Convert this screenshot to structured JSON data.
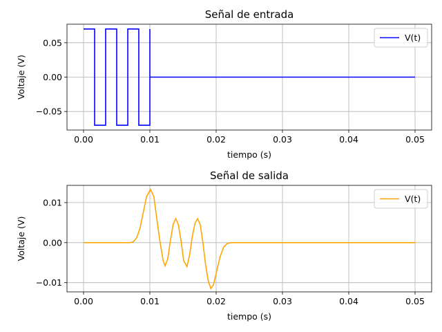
{
  "chart_data": [
    {
      "type": "line",
      "title": "Señal de entrada",
      "xlabel": "tiempo (s)",
      "ylabel": "Voltaje (V)",
      "xlim": [
        -0.0025,
        0.0525
      ],
      "ylim": [
        -0.077,
        0.077
      ],
      "xticks": [
        0.0,
        0.01,
        0.02,
        0.03,
        0.04,
        0.05
      ],
      "xtick_labels": [
        "0.00",
        "0.01",
        "0.02",
        "0.03",
        "0.04",
        "0.05"
      ],
      "yticks": [
        0.05,
        0.0,
        -0.05
      ],
      "ytick_labels": [
        "0.05",
        "0.00",
        "−0.05"
      ],
      "grid": true,
      "legend_position": "top-right",
      "series": [
        {
          "name": "V(t)",
          "color": "#0000ff",
          "step": true,
          "x": [
            0.0,
            0.00167,
            0.00333,
            0.005,
            0.00667,
            0.00833,
            0.01,
            0.01,
            0.05
          ],
          "y": [
            0.07,
            -0.07,
            0.07,
            -0.07,
            0.07,
            -0.07,
            0.07,
            0.0,
            0.0
          ]
        }
      ]
    },
    {
      "type": "line",
      "title": "Señal de salida",
      "xlabel": "tiempo (s)",
      "ylabel": "Voltaje (V)",
      "xlim": [
        -0.0025,
        0.0525
      ],
      "ylim": [
        -0.0123,
        0.0143
      ],
      "xticks": [
        0.0,
        0.01,
        0.02,
        0.03,
        0.04,
        0.05
      ],
      "xtick_labels": [
        "0.00",
        "0.01",
        "0.02",
        "0.03",
        "0.04",
        "0.05"
      ],
      "yticks": [
        0.01,
        0.0,
        -0.01
      ],
      "ytick_labels": [
        "0.01",
        "0.00",
        "−0.01"
      ],
      "grid": true,
      "legend_position": "top-right",
      "series": [
        {
          "name": "V(t)",
          "color": "#ffa500",
          "x": [
            0.0,
            0.007,
            0.0075,
            0.008,
            0.0085,
            0.009,
            0.0095,
            0.0101,
            0.0106,
            0.011,
            0.0115,
            0.012,
            0.0123,
            0.0127,
            0.0131,
            0.0135,
            0.0139,
            0.0143,
            0.0147,
            0.0151,
            0.0156,
            0.016,
            0.0164,
            0.0168,
            0.0172,
            0.0176,
            0.018,
            0.0184,
            0.0188,
            0.0192,
            0.0196,
            0.0201,
            0.0206,
            0.0211,
            0.0216,
            0.0222,
            0.023,
            0.05
          ],
          "y": [
            0.0,
            0.0,
            0.0002,
            0.0012,
            0.0035,
            0.0075,
            0.0115,
            0.0133,
            0.0115,
            0.0065,
            0.0005,
            -0.0045,
            -0.0058,
            -0.004,
            0.0005,
            0.0045,
            0.006,
            0.0045,
            0.0005,
            -0.0045,
            -0.006,
            -0.003,
            0.0015,
            0.0048,
            0.006,
            0.0045,
            0.0,
            -0.0055,
            -0.0095,
            -0.0115,
            -0.0105,
            -0.007,
            -0.0035,
            -0.0012,
            -0.0003,
            0.0,
            0.0,
            0.0
          ]
        }
      ]
    }
  ]
}
